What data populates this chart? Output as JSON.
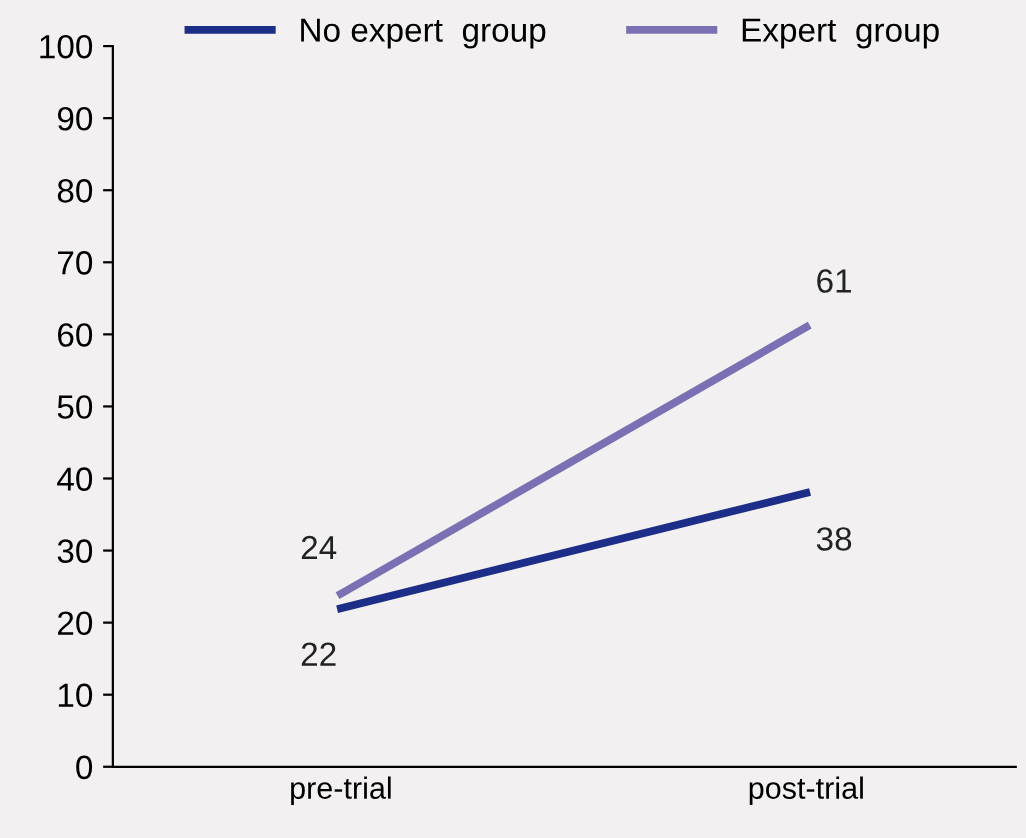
{
  "chart_data": {
    "type": "line",
    "categories": [
      "pre-trial",
      "post-trial"
    ],
    "series": [
      {
        "name": "No expert  group",
        "color": "#1c2e87",
        "values": [
          22,
          38
        ]
      },
      {
        "name": "Expert  group",
        "color": "#7b70b3",
        "values": [
          24,
          61
        ]
      }
    ],
    "ylim": [
      0,
      100
    ],
    "yticks": [
      0,
      10,
      20,
      30,
      40,
      50,
      60,
      70,
      80,
      90,
      100
    ],
    "grid": false,
    "legend": "top",
    "marker": "none",
    "line_style": "solid",
    "data_labels": true
  }
}
